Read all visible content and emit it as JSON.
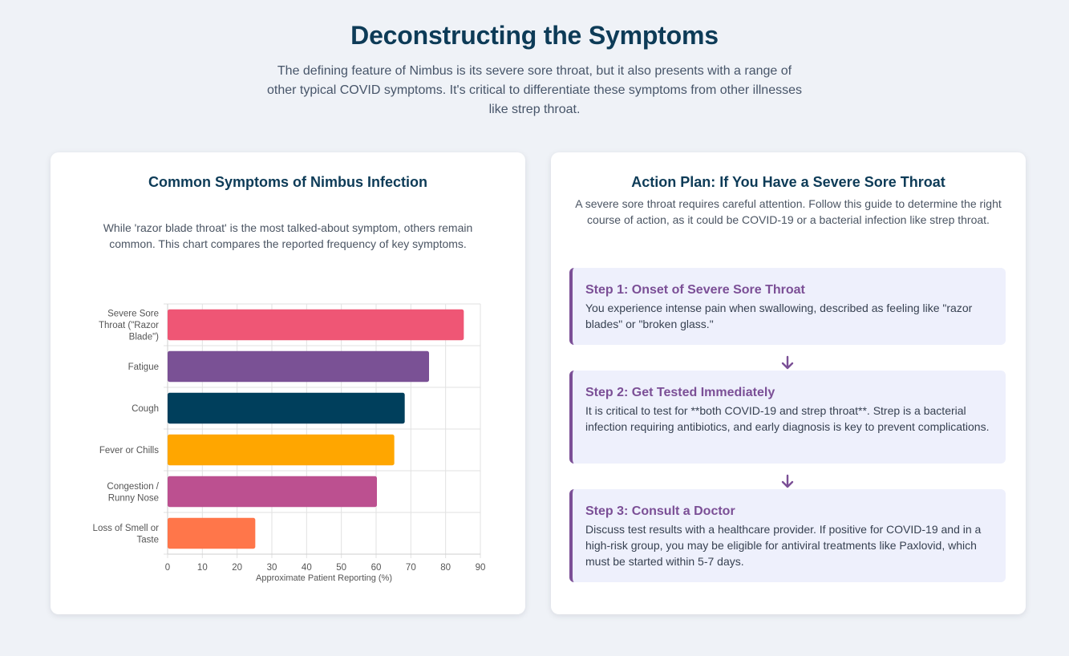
{
  "page": {
    "title": "Deconstructing the Symptoms",
    "intro": "The defining feature of Nimbus is its severe sore throat, but it also presents with a range of other typical COVID symptoms. It's critical to differentiate these symptoms from other illnesses like strep throat."
  },
  "left_card": {
    "title": "Common Symptoms of Nimbus Infection",
    "description": "While 'razor blade throat' is the most talked-about symptom, others remain common. This chart compares the reported frequency of key symptoms."
  },
  "chart_data": {
    "type": "bar",
    "orientation": "horizontal",
    "categories": [
      [
        "Severe Sore",
        "Throat (\"Razor",
        "Blade\")"
      ],
      [
        "Fatigue"
      ],
      [
        "Cough"
      ],
      [
        "Fever or Chills"
      ],
      [
        "Congestion /",
        "Runny Nose"
      ],
      [
        "Loss of Smell or",
        "Taste"
      ]
    ],
    "values": [
      85,
      75,
      68,
      65,
      60,
      25
    ],
    "colors": [
      "#ef5675",
      "#7a5195",
      "#003f5c",
      "#ffa600",
      "#bc5090",
      "#ff764a"
    ],
    "xlabel": "Approximate Patient Reporting (%)",
    "ylabel": "",
    "xlim": [
      0,
      90
    ],
    "xticks": [
      0,
      10,
      20,
      30,
      40,
      50,
      60,
      70,
      80,
      90
    ],
    "grid": true,
    "legend": "none"
  },
  "right_card": {
    "title": "Action Plan: If You Have a Severe Sore Throat",
    "description": "A severe sore throat requires careful attention. Follow this guide to determine the right course of action, as it could be COVID-19 or a bacterial infection like strep throat.",
    "steps": [
      {
        "title": "Step 1: Onset of Severe Sore Throat",
        "text": "You experience intense pain when swallowing, described as feeling like \"razor blades\" or \"broken glass.\""
      },
      {
        "title": "Step 2: Get Tested Immediately",
        "text": "It is critical to test for **both COVID-19 and strep throat**. Strep is a bacterial infection requiring antibiotics, and early diagnosis is key to prevent complications."
      },
      {
        "title": "Step 3: Consult a Doctor",
        "text": "Discuss test results with a healthcare provider. If positive for COVID-19 and in a high-risk group, you may be eligible for antiviral treatments like Paxlovid, which must be started within 5-7 days."
      }
    ],
    "arrow_icon": "arrow-down-icon",
    "accent_color": "#7b4f96"
  }
}
